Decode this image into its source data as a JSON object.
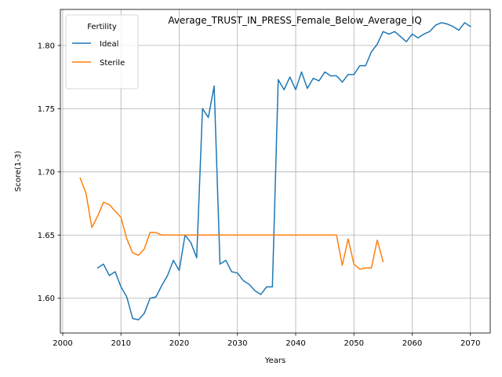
{
  "chart_data": {
    "type": "line",
    "title": "Average_TRUST_IN_PRESS_Female_Below_Average_IQ",
    "xlabel": "Years",
    "ylabel": "Score(1-3)",
    "xlim": [
      1999.6,
      2073.4
    ],
    "ylim": [
      1.5725,
      1.8285
    ],
    "xticks": [
      2000,
      2010,
      2020,
      2030,
      2040,
      2050,
      2060,
      2070
    ],
    "yticks": [
      1.6,
      1.65,
      1.7,
      1.75,
      1.8
    ],
    "ytick_labels": [
      "1.60",
      "1.65",
      "1.70",
      "1.75",
      "1.80"
    ],
    "grid": true,
    "legend": {
      "title": "Fertility",
      "position": "top-left"
    },
    "series": [
      {
        "name": "Ideal",
        "color": "#1f77b4",
        "x": [
          2006,
          2007,
          2008,
          2009,
          2010,
          2011,
          2012,
          2013,
          2014,
          2015,
          2016,
          2017,
          2018,
          2019,
          2020,
          2021,
          2022,
          2023,
          2024,
          2025,
          2026,
          2027,
          2028,
          2029,
          2030,
          2031,
          2032,
          2033,
          2034,
          2035,
          2036,
          2037,
          2038,
          2039,
          2040,
          2041,
          2042,
          2043,
          2044,
          2045,
          2046,
          2047,
          2048,
          2049,
          2050,
          2051,
          2052,
          2053,
          2054,
          2055,
          2056,
          2057,
          2058,
          2059,
          2060,
          2061,
          2062,
          2063,
          2064,
          2065,
          2066,
          2067,
          2068,
          2069,
          2070
        ],
        "y": [
          1.624,
          1.627,
          1.618,
          1.621,
          1.609,
          1.601,
          1.584,
          1.583,
          1.588,
          1.6,
          1.601,
          1.61,
          1.618,
          1.63,
          1.622,
          1.65,
          1.644,
          1.632,
          1.75,
          1.743,
          1.768,
          1.627,
          1.63,
          1.621,
          1.62,
          1.614,
          1.611,
          1.606,
          1.603,
          1.609,
          1.609,
          1.773,
          1.765,
          1.775,
          1.765,
          1.779,
          1.766,
          1.774,
          1.772,
          1.779,
          1.776,
          1.776,
          1.771,
          1.777,
          1.777,
          1.784,
          1.784,
          1.795,
          1.801,
          1.811,
          1.809,
          1.811,
          1.807,
          1.803,
          1.809,
          1.806,
          1.809,
          1.811,
          1.816,
          1.818,
          1.817,
          1.815,
          1.812,
          1.818,
          1.815
        ]
      },
      {
        "name": "Sterile",
        "color": "#ff7f0e",
        "x": [
          2003,
          2004,
          2005,
          2006,
          2007,
          2008,
          2009,
          2010,
          2011,
          2012,
          2013,
          2014,
          2015,
          2016,
          2017,
          2018,
          2019,
          2020,
          2021,
          2022,
          2023,
          2024,
          2025,
          2026,
          2027,
          2028,
          2029,
          2030,
          2031,
          2032,
          2033,
          2034,
          2035,
          2036,
          2037,
          2038,
          2039,
          2040,
          2041,
          2042,
          2043,
          2044,
          2045,
          2046,
          2047,
          2048,
          2049,
          2050,
          2051,
          2052,
          2053,
          2054,
          2055
        ],
        "y": [
          1.695,
          1.683,
          1.656,
          1.665,
          1.676,
          1.674,
          1.669,
          1.664,
          1.647,
          1.636,
          1.634,
          1.639,
          1.652,
          1.652,
          1.65,
          1.65,
          1.65,
          1.65,
          1.65,
          1.65,
          1.65,
          1.65,
          1.65,
          1.65,
          1.65,
          1.65,
          1.65,
          1.65,
          1.65,
          1.65,
          1.65,
          1.65,
          1.65,
          1.65,
          1.65,
          1.65,
          1.65,
          1.65,
          1.65,
          1.65,
          1.65,
          1.65,
          1.65,
          1.65,
          1.65,
          1.626,
          1.647,
          1.627,
          1.623,
          1.624,
          1.624,
          1.646,
          1.629
        ]
      }
    ]
  }
}
